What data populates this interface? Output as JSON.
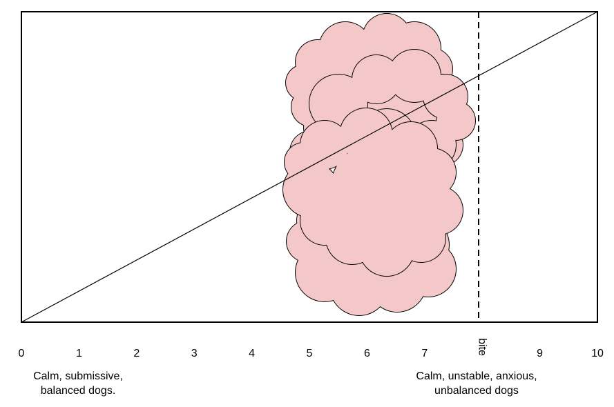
{
  "scale": {
    "ticks": [
      "0",
      "1",
      "2",
      "3",
      "4",
      "5",
      "6",
      "7",
      "bite",
      "9",
      "10"
    ],
    "bite_label": "bite",
    "min": 0,
    "max": 10,
    "bite_value": 8
  },
  "captions": {
    "left_line1": "Calm, submissive,",
    "left_line2": "balanced dogs.",
    "right_line1": "Calm, unstable, anxious,",
    "right_line2": "unbalanced dogs"
  },
  "colors": {
    "cloud_fill": "#f4c8c8",
    "stroke": "#000000",
    "background": "#ffffff"
  }
}
